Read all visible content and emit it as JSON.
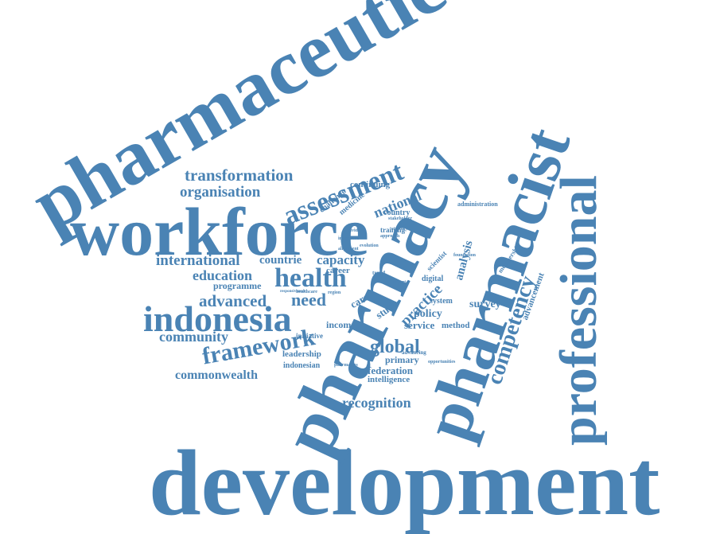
{
  "color": "#4a83b4",
  "words": [
    "development",
    "pharmaceutical",
    "workforce",
    "pharmacy",
    "pharmacist",
    "professional",
    "indonesia",
    "health",
    "assessment",
    "framework",
    "competency",
    "transformation",
    "organisation",
    "international",
    "education",
    "advanced",
    "need",
    "community",
    "commonwealth",
    "global",
    "recognition",
    "national",
    "practice",
    "capacity",
    "countrie",
    "programme",
    "care",
    "study",
    "policy",
    "service",
    "income",
    "survey",
    "federation",
    "intelligence",
    "primary",
    "leadership",
    "indonesian",
    "analysis",
    "advancement",
    "method",
    "continuing",
    "challenge",
    "medicine",
    "country",
    "training",
    "career",
    "digital",
    "system",
    "scientist",
    "initiative",
    "administration",
    "membership",
    "advancing",
    "opportunities",
    "pharmacies",
    "healthcare",
    "integrated",
    "approach",
    "trend",
    "stakeholder",
    "individual",
    "alignment",
    "report",
    "responsiveness",
    "region",
    "strategy",
    "foundation",
    "evolution"
  ]
}
